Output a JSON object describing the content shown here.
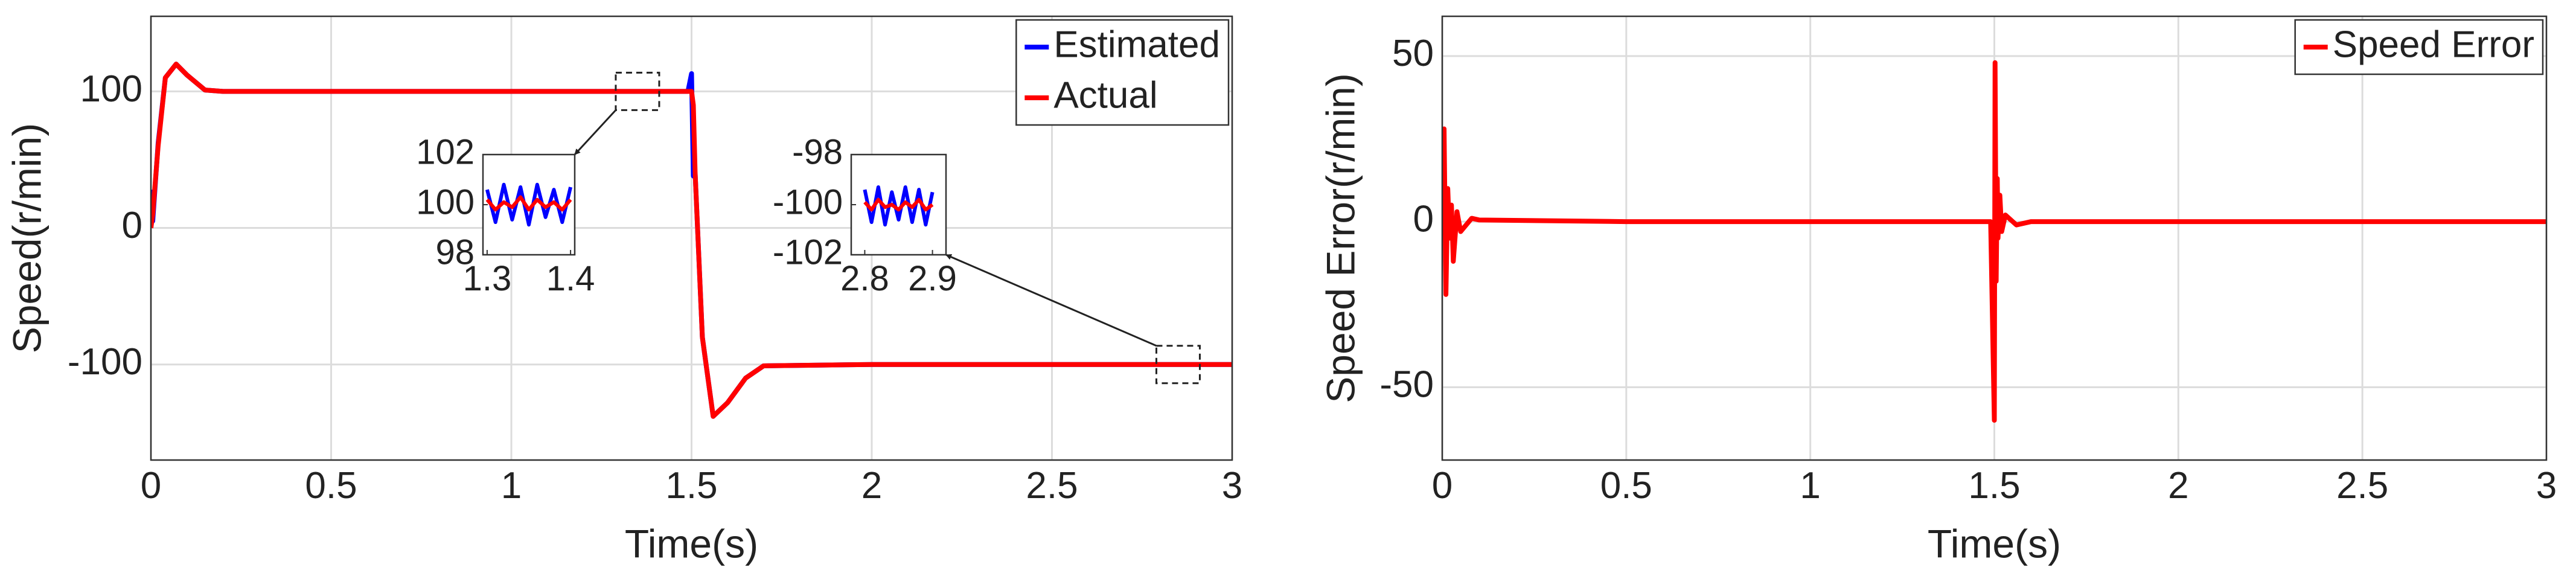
{
  "chart_data": [
    {
      "type": "line",
      "xlabel": "Time(s)",
      "ylabel": "Speed(r/min)",
      "x": [
        0,
        0.005,
        0.02,
        0.04,
        0.07,
        0.1,
        0.15,
        0.2,
        0.5,
        1,
        1.49,
        1.5,
        1.505,
        1.51,
        1.53,
        1.56,
        1.6,
        1.65,
        1.7,
        2,
        2.5,
        3
      ],
      "series": [
        {
          "name": "Estimated",
          "color": "#0000ff",
          "values": [
            28,
            5,
            62,
            110,
            120,
            112,
            101,
            100,
            100,
            100,
            100,
            113,
            38,
            40,
            -80,
            -138,
            -128,
            -110,
            -101,
            -100,
            -100,
            -100
          ]
        },
        {
          "name": "Actual",
          "color": "#ff0000",
          "values": [
            0,
            10,
            60,
            110,
            120,
            112,
            101,
            100,
            100,
            100,
            100,
            100,
            90,
            40,
            -80,
            -138,
            -128,
            -110,
            -101,
            -100,
            -100,
            -100
          ]
        }
      ],
      "xlim": [
        0,
        3
      ],
      "ylim": [
        -170,
        155
      ],
      "xticks": [
        0,
        0.5,
        1,
        1.5,
        2,
        2.5,
        3
      ],
      "yticks": [
        -100,
        0,
        100
      ],
      "grid": true,
      "legend": "upper right",
      "insets": [
        {
          "x": [
            1.3,
            1.31,
            1.32,
            1.33,
            1.34,
            1.35,
            1.36,
            1.37,
            1.38,
            1.39,
            1.4
          ],
          "series": [
            {
              "color": "#0000ff",
              "values": [
                100.6,
                99.3,
                100.8,
                99.4,
                100.7,
                99.2,
                100.8,
                99.5,
                100.6,
                99.3,
                100.7
              ]
            },
            {
              "color": "#ff0000",
              "values": [
                100.2,
                99.8,
                100.1,
                99.9,
                100.3,
                99.8,
                100.2,
                99.9,
                100.1,
                99.8,
                100.2
              ]
            }
          ],
          "xlim": [
            1.295,
            1.405
          ],
          "ylim": [
            98,
            102
          ],
          "xticks": [
            1.3,
            1.4
          ],
          "yticks": [
            98,
            100,
            102
          ]
        },
        {
          "x": [
            2.8,
            2.81,
            2.82,
            2.83,
            2.84,
            2.85,
            2.86,
            2.87,
            2.88,
            2.89,
            2.9
          ],
          "series": [
            {
              "color": "#0000ff",
              "values": [
                -99.4,
                -100.7,
                -99.3,
                -100.8,
                -99.5,
                -100.6,
                -99.3,
                -100.7,
                -99.4,
                -100.8,
                -99.5
              ]
            },
            {
              "color": "#ff0000",
              "values": [
                -99.9,
                -100.2,
                -99.8,
                -100.1,
                -100.0,
                -100.2,
                -99.9,
                -100.1,
                -99.8,
                -100.2,
                -100.0
              ]
            }
          ],
          "xlim": [
            2.78,
            2.92
          ],
          "ylim": [
            -102,
            -98
          ],
          "xticks": [
            2.8,
            2.9
          ],
          "yticks": [
            -102,
            -100,
            -98
          ]
        }
      ]
    },
    {
      "type": "line",
      "xlabel": "Time(s)",
      "ylabel": "Speed Error(r/min)",
      "x": [
        0,
        0.005,
        0.01,
        0.015,
        0.02,
        0.025,
        0.03,
        0.04,
        0.05,
        0.08,
        0.1,
        0.5,
        1,
        1.49,
        1.5,
        1.502,
        1.505,
        1.508,
        1.51,
        1.515,
        1.52,
        1.53,
        1.56,
        1.6,
        2,
        2.5,
        3
      ],
      "series": [
        {
          "name": "Speed Error",
          "color": "#ff0000",
          "values": [
            0,
            28,
            -22,
            10,
            -5,
            5,
            -12,
            3,
            -3,
            1,
            0.5,
            0,
            0,
            0,
            -60,
            48,
            -18,
            13,
            -5,
            8,
            -3,
            2,
            -1,
            0,
            0,
            0,
            0
          ]
        }
      ],
      "xlim": [
        0,
        3
      ],
      "ylim": [
        -72,
        62
      ],
      "xticks": [
        0,
        0.5,
        1,
        1.5,
        2,
        2.5,
        3
      ],
      "yticks": [
        -50,
        0,
        50
      ],
      "grid": true,
      "legend": "upper right"
    }
  ]
}
